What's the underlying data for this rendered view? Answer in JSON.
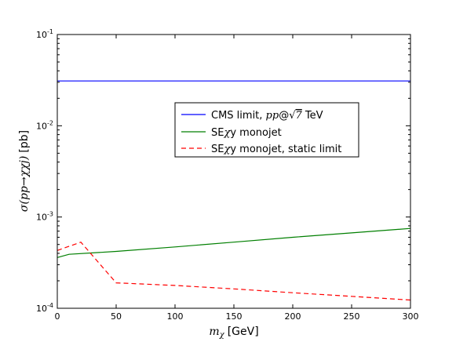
{
  "chart_data": {
    "type": "line",
    "xlabel": "m_χ [GeV]",
    "ylabel": "σ(pp→χχj) [pb]",
    "xlim": [
      0,
      300
    ],
    "ylim": [
      0.0001,
      0.1
    ],
    "yscale": "log",
    "x_ticks": [
      "0",
      "50",
      "100",
      "150",
      "200",
      "250",
      "300"
    ],
    "x_tick_values": [
      0,
      50,
      100,
      150,
      200,
      250,
      300
    ],
    "y_ticks": [
      "10^-4",
      "10^-3",
      "10^-2",
      "10^-1"
    ],
    "y_tick_values": [
      0.0001,
      0.001,
      0.01,
      0.1
    ],
    "grid": false,
    "legend_position": "upper-center-right",
    "series": [
      {
        "name": "CMS limit, pp@√7 TeV",
        "color": "#0000ff",
        "dash": "solid",
        "x": [
          0,
          300
        ],
        "y": [
          0.031,
          0.031
        ]
      },
      {
        "name": "SEχy monojet",
        "color": "#007f00",
        "dash": "solid",
        "x": [
          0,
          10,
          50,
          100,
          150,
          200,
          250,
          300
        ],
        "y": [
          0.00036,
          0.00039,
          0.00042,
          0.00047,
          0.00053,
          0.0006,
          0.00067,
          0.00075
        ]
      },
      {
        "name": "SEχy monojet, static limit",
        "color": "#ff0000",
        "dash": "dashed",
        "x": [
          0,
          20,
          50,
          100,
          150,
          200,
          250,
          300
        ],
        "y": [
          0.00043,
          0.00053,
          0.00019,
          0.000178,
          0.000163,
          0.000148,
          0.000135,
          0.000123
        ]
      }
    ]
  }
}
